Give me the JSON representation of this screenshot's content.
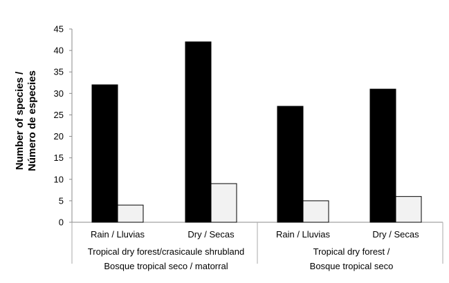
{
  "chart_data": {
    "type": "bar",
    "title": "",
    "xlabel": "",
    "ylabel_lines": [
      "Number of species /",
      "Número de especies"
    ],
    "ylim": [
      0,
      45
    ],
    "yticks": [
      0,
      5,
      10,
      15,
      20,
      25,
      30,
      35,
      40,
      45
    ],
    "grid": false,
    "legend": "none",
    "categories": [
      "Rain / Lluvias",
      "Dry / Secas",
      "Rain / Lluvias",
      "Dry / Secas"
    ],
    "groups": [
      {
        "label_lines": [
          "Tropical dry forest/crasicaule shrubland",
          "Bosque tropical seco / matorral"
        ],
        "category_indices": [
          0,
          1
        ]
      },
      {
        "label_lines": [
          "Tropical dry forest /",
          "Bosque tropical seco"
        ],
        "category_indices": [
          2,
          3
        ]
      }
    ],
    "series": [
      {
        "values": [
          32,
          42,
          27,
          31
        ],
        "color": "#000000"
      },
      {
        "values": [
          4,
          9,
          5,
          6
        ],
        "color": "#f2f2f2"
      }
    ]
  }
}
